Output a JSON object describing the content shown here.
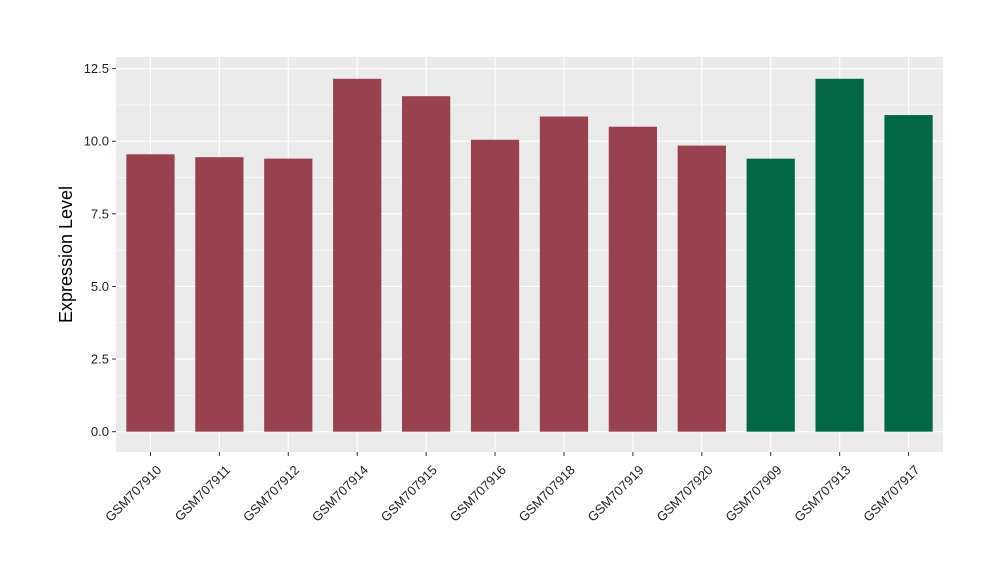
{
  "chart_data": {
    "type": "bar",
    "title": "",
    "xlabel": "",
    "ylabel": "Expression Level",
    "ylim": [
      -0.7,
      12.9
    ],
    "yticks": [
      0.0,
      2.5,
      5.0,
      7.5,
      10.0,
      12.5
    ],
    "ytick_labels": [
      "0.0",
      "2.5",
      "5.0",
      "7.5",
      "10.0",
      "12.5"
    ],
    "grid": true,
    "legend": "none",
    "categories": [
      "GSM707910",
      "GSM707911",
      "GSM707912",
      "GSM707914",
      "GSM707915",
      "GSM707916",
      "GSM707918",
      "GSM707919",
      "GSM707920",
      "GSM707909",
      "GSM707913",
      "GSM707917"
    ],
    "values": [
      9.55,
      9.45,
      9.4,
      12.15,
      11.55,
      10.05,
      10.85,
      10.5,
      9.85,
      9.4,
      12.15,
      10.9
    ],
    "bar_colors": [
      "#98414f",
      "#98414f",
      "#98414f",
      "#98414f",
      "#98414f",
      "#98414f",
      "#98414f",
      "#98414f",
      "#98414f",
      "#016745",
      "#016745",
      "#016745"
    ],
    "panel_background": "#ebebeb",
    "grid_color": "#ffffff"
  }
}
